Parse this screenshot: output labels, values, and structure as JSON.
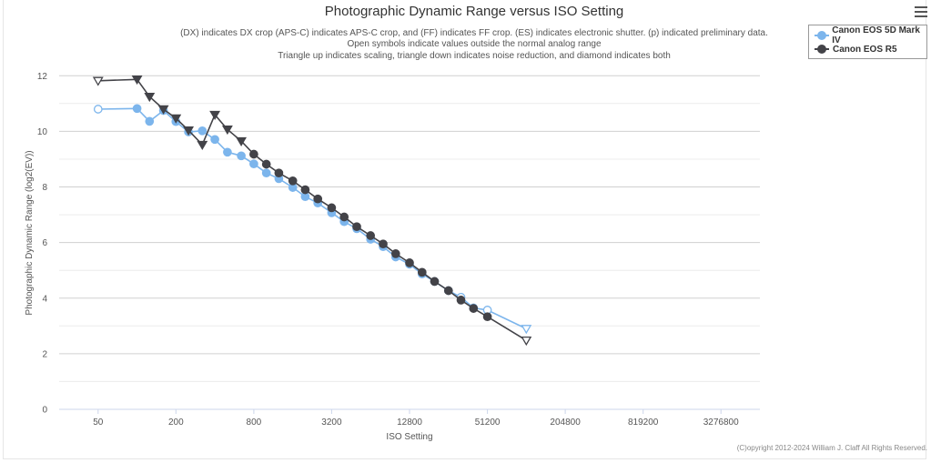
{
  "chart_data": {
    "type": "line",
    "title": "Photographic Dynamic Range versus ISO Setting",
    "subtitle": [
      "(DX) indicates DX crop (APS-C) indicates APS-C crop, and (FF) indicates FF crop. (ES) indicates electronic shutter. (p) indicated preliminary data.",
      "Open symbols indicate values outside the normal analog range",
      "Triangle up indicates scaling, triangle down indicates noise reduction, and diamond indicates both"
    ],
    "xlabel": "ISO Setting",
    "ylabel": "Photographic Dynamic Range (log2(EV))",
    "x_scale": "log2",
    "xlim": [
      25,
      6553600
    ],
    "x_ticks": [
      50,
      200,
      800,
      3200,
      12800,
      51200,
      204800,
      819200,
      3276800
    ],
    "x_tick_labels": [
      "50",
      "200",
      "800",
      "3200",
      "12800",
      "51200",
      "204800",
      "819200",
      "3276800"
    ],
    "ylim": [
      0,
      12.5
    ],
    "y_ticks": [
      0,
      2,
      4,
      6,
      8,
      10,
      12
    ],
    "y_tick_labels": [
      "0",
      "2",
      "4",
      "6",
      "8",
      "10",
      "12"
    ],
    "grid": true,
    "legend_position": "top-right",
    "credit": "(C)opyright 2012-2024 William J. Claff All Rights Reserved.",
    "series": [
      {
        "name": "Canon EOS 5D Mark IV",
        "color": "#7cb5ec",
        "points": [
          {
            "x": 50,
            "y": 10.8,
            "marker": "circle",
            "open": true
          },
          {
            "x": 100,
            "y": 10.82,
            "marker": "circle",
            "open": false
          },
          {
            "x": 125,
            "y": 10.36,
            "marker": "circle",
            "open": false
          },
          {
            "x": 160,
            "y": 10.75,
            "marker": "circle",
            "open": false
          },
          {
            "x": 200,
            "y": 10.35,
            "marker": "circle",
            "open": false
          },
          {
            "x": 250,
            "y": 9.98,
            "marker": "circle",
            "open": false
          },
          {
            "x": 320,
            "y": 10.02,
            "marker": "circle",
            "open": false
          },
          {
            "x": 400,
            "y": 9.71,
            "marker": "circle",
            "open": false
          },
          {
            "x": 500,
            "y": 9.25,
            "marker": "circle",
            "open": false
          },
          {
            "x": 640,
            "y": 9.12,
            "marker": "circle",
            "open": false
          },
          {
            "x": 800,
            "y": 8.83,
            "marker": "circle",
            "open": false
          },
          {
            "x": 1000,
            "y": 8.5,
            "marker": "circle",
            "open": false
          },
          {
            "x": 1250,
            "y": 8.3,
            "marker": "circle",
            "open": false
          },
          {
            "x": 1600,
            "y": 7.98,
            "marker": "circle",
            "open": false
          },
          {
            "x": 2000,
            "y": 7.65,
            "marker": "circle",
            "open": false
          },
          {
            "x": 2500,
            "y": 7.42,
            "marker": "circle",
            "open": false
          },
          {
            "x": 3200,
            "y": 7.07,
            "marker": "circle",
            "open": false
          },
          {
            "x": 4000,
            "y": 6.75,
            "marker": "circle",
            "open": false
          },
          {
            "x": 5000,
            "y": 6.5,
            "marker": "circle",
            "open": false
          },
          {
            "x": 6400,
            "y": 6.12,
            "marker": "circle",
            "open": false
          },
          {
            "x": 8000,
            "y": 5.85,
            "marker": "circle",
            "open": false
          },
          {
            "x": 10000,
            "y": 5.48,
            "marker": "circle",
            "open": false
          },
          {
            "x": 12800,
            "y": 5.22,
            "marker": "circle",
            "open": false
          },
          {
            "x": 16000,
            "y": 4.87,
            "marker": "circle",
            "open": false
          },
          {
            "x": 20000,
            "y": 4.6,
            "marker": "circle",
            "open": false
          },
          {
            "x": 25600,
            "y": 4.27,
            "marker": "circle",
            "open": false
          },
          {
            "x": 32000,
            "y": 4.03,
            "marker": "circle",
            "open": true
          },
          {
            "x": 40000,
            "y": 3.65,
            "marker": "circle",
            "open": true
          },
          {
            "x": 51200,
            "y": 3.57,
            "marker": "circle",
            "open": true
          },
          {
            "x": 102400,
            "y": 2.9,
            "marker": "triangle-down",
            "open": true
          }
        ]
      },
      {
        "name": "Canon EOS R5",
        "color": "#434348",
        "points": [
          {
            "x": 50,
            "y": 11.82,
            "marker": "triangle-down",
            "open": true
          },
          {
            "x": 100,
            "y": 11.87,
            "marker": "triangle-down",
            "open": false
          },
          {
            "x": 125,
            "y": 11.25,
            "marker": "triangle-down",
            "open": false
          },
          {
            "x": 160,
            "y": 10.8,
            "marker": "triangle-down",
            "open": false
          },
          {
            "x": 200,
            "y": 10.47,
            "marker": "triangle-down",
            "open": false
          },
          {
            "x": 250,
            "y": 10.04,
            "marker": "triangle-down",
            "open": false
          },
          {
            "x": 320,
            "y": 9.52,
            "marker": "triangle-down",
            "open": false
          },
          {
            "x": 400,
            "y": 10.6,
            "marker": "triangle-down",
            "open": false
          },
          {
            "x": 500,
            "y": 10.07,
            "marker": "triangle-down",
            "open": false
          },
          {
            "x": 640,
            "y": 9.65,
            "marker": "triangle-down",
            "open": false
          },
          {
            "x": 800,
            "y": 9.18,
            "marker": "circle",
            "open": false
          },
          {
            "x": 1000,
            "y": 8.82,
            "marker": "circle",
            "open": false
          },
          {
            "x": 1250,
            "y": 8.5,
            "marker": "circle",
            "open": false
          },
          {
            "x": 1600,
            "y": 8.22,
            "marker": "circle",
            "open": false
          },
          {
            "x": 2000,
            "y": 7.9,
            "marker": "circle",
            "open": false
          },
          {
            "x": 2500,
            "y": 7.57,
            "marker": "circle",
            "open": false
          },
          {
            "x": 3200,
            "y": 7.25,
            "marker": "circle",
            "open": false
          },
          {
            "x": 4000,
            "y": 6.92,
            "marker": "circle",
            "open": false
          },
          {
            "x": 5000,
            "y": 6.57,
            "marker": "circle",
            "open": false
          },
          {
            "x": 6400,
            "y": 6.25,
            "marker": "circle",
            "open": false
          },
          {
            "x": 8000,
            "y": 5.95,
            "marker": "circle",
            "open": false
          },
          {
            "x": 10000,
            "y": 5.6,
            "marker": "circle",
            "open": false
          },
          {
            "x": 12800,
            "y": 5.27,
            "marker": "circle",
            "open": false
          },
          {
            "x": 16000,
            "y": 4.93,
            "marker": "circle",
            "open": false
          },
          {
            "x": 20000,
            "y": 4.6,
            "marker": "circle",
            "open": false
          },
          {
            "x": 25600,
            "y": 4.27,
            "marker": "circle",
            "open": false
          },
          {
            "x": 32000,
            "y": 3.93,
            "marker": "circle",
            "open": false
          },
          {
            "x": 40000,
            "y": 3.63,
            "marker": "circle",
            "open": false
          },
          {
            "x": 51200,
            "y": 3.33,
            "marker": "circle",
            "open": false
          },
          {
            "x": 102400,
            "y": 2.48,
            "marker": "triangle-down",
            "open": true
          }
        ]
      }
    ]
  }
}
